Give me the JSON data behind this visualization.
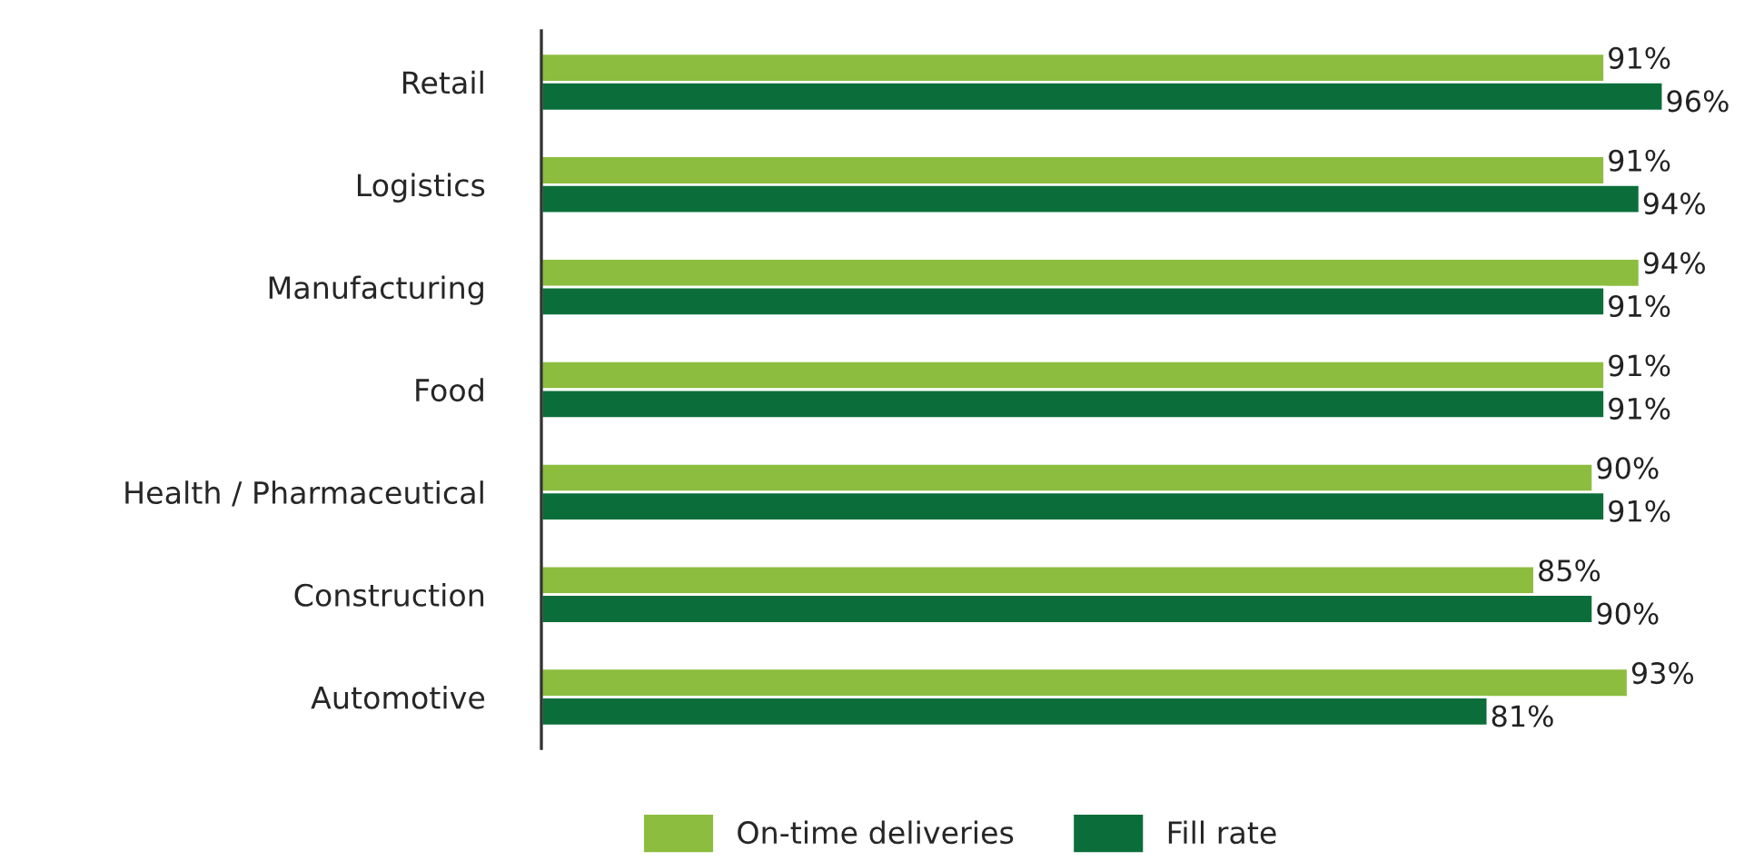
{
  "chart_data": {
    "type": "bar",
    "orientation": "horizontal",
    "categories": [
      "Retail",
      "Logistics",
      "Manufacturing",
      "Food",
      "Health / Pharmaceutical",
      "Construction",
      "Automotive"
    ],
    "series": [
      {
        "name": "On-time deliveries",
        "color": "#8cbd3f",
        "values": [
          91,
          91,
          94,
          91,
          90,
          85,
          93
        ],
        "value_labels": [
          "91%",
          "91%",
          "94%",
          "91%",
          "90%",
          "85%",
          "93%"
        ]
      },
      {
        "name": "Fill rate",
        "color": "#0b6e3a",
        "values": [
          96,
          94,
          91,
          91,
          91,
          90,
          81
        ],
        "value_labels": [
          "96%",
          "94%",
          "91%",
          "91%",
          "91%",
          "90%",
          "81%"
        ]
      }
    ],
    "tick_labels": "y",
    "legend": "bottom",
    "grid": false
  }
}
